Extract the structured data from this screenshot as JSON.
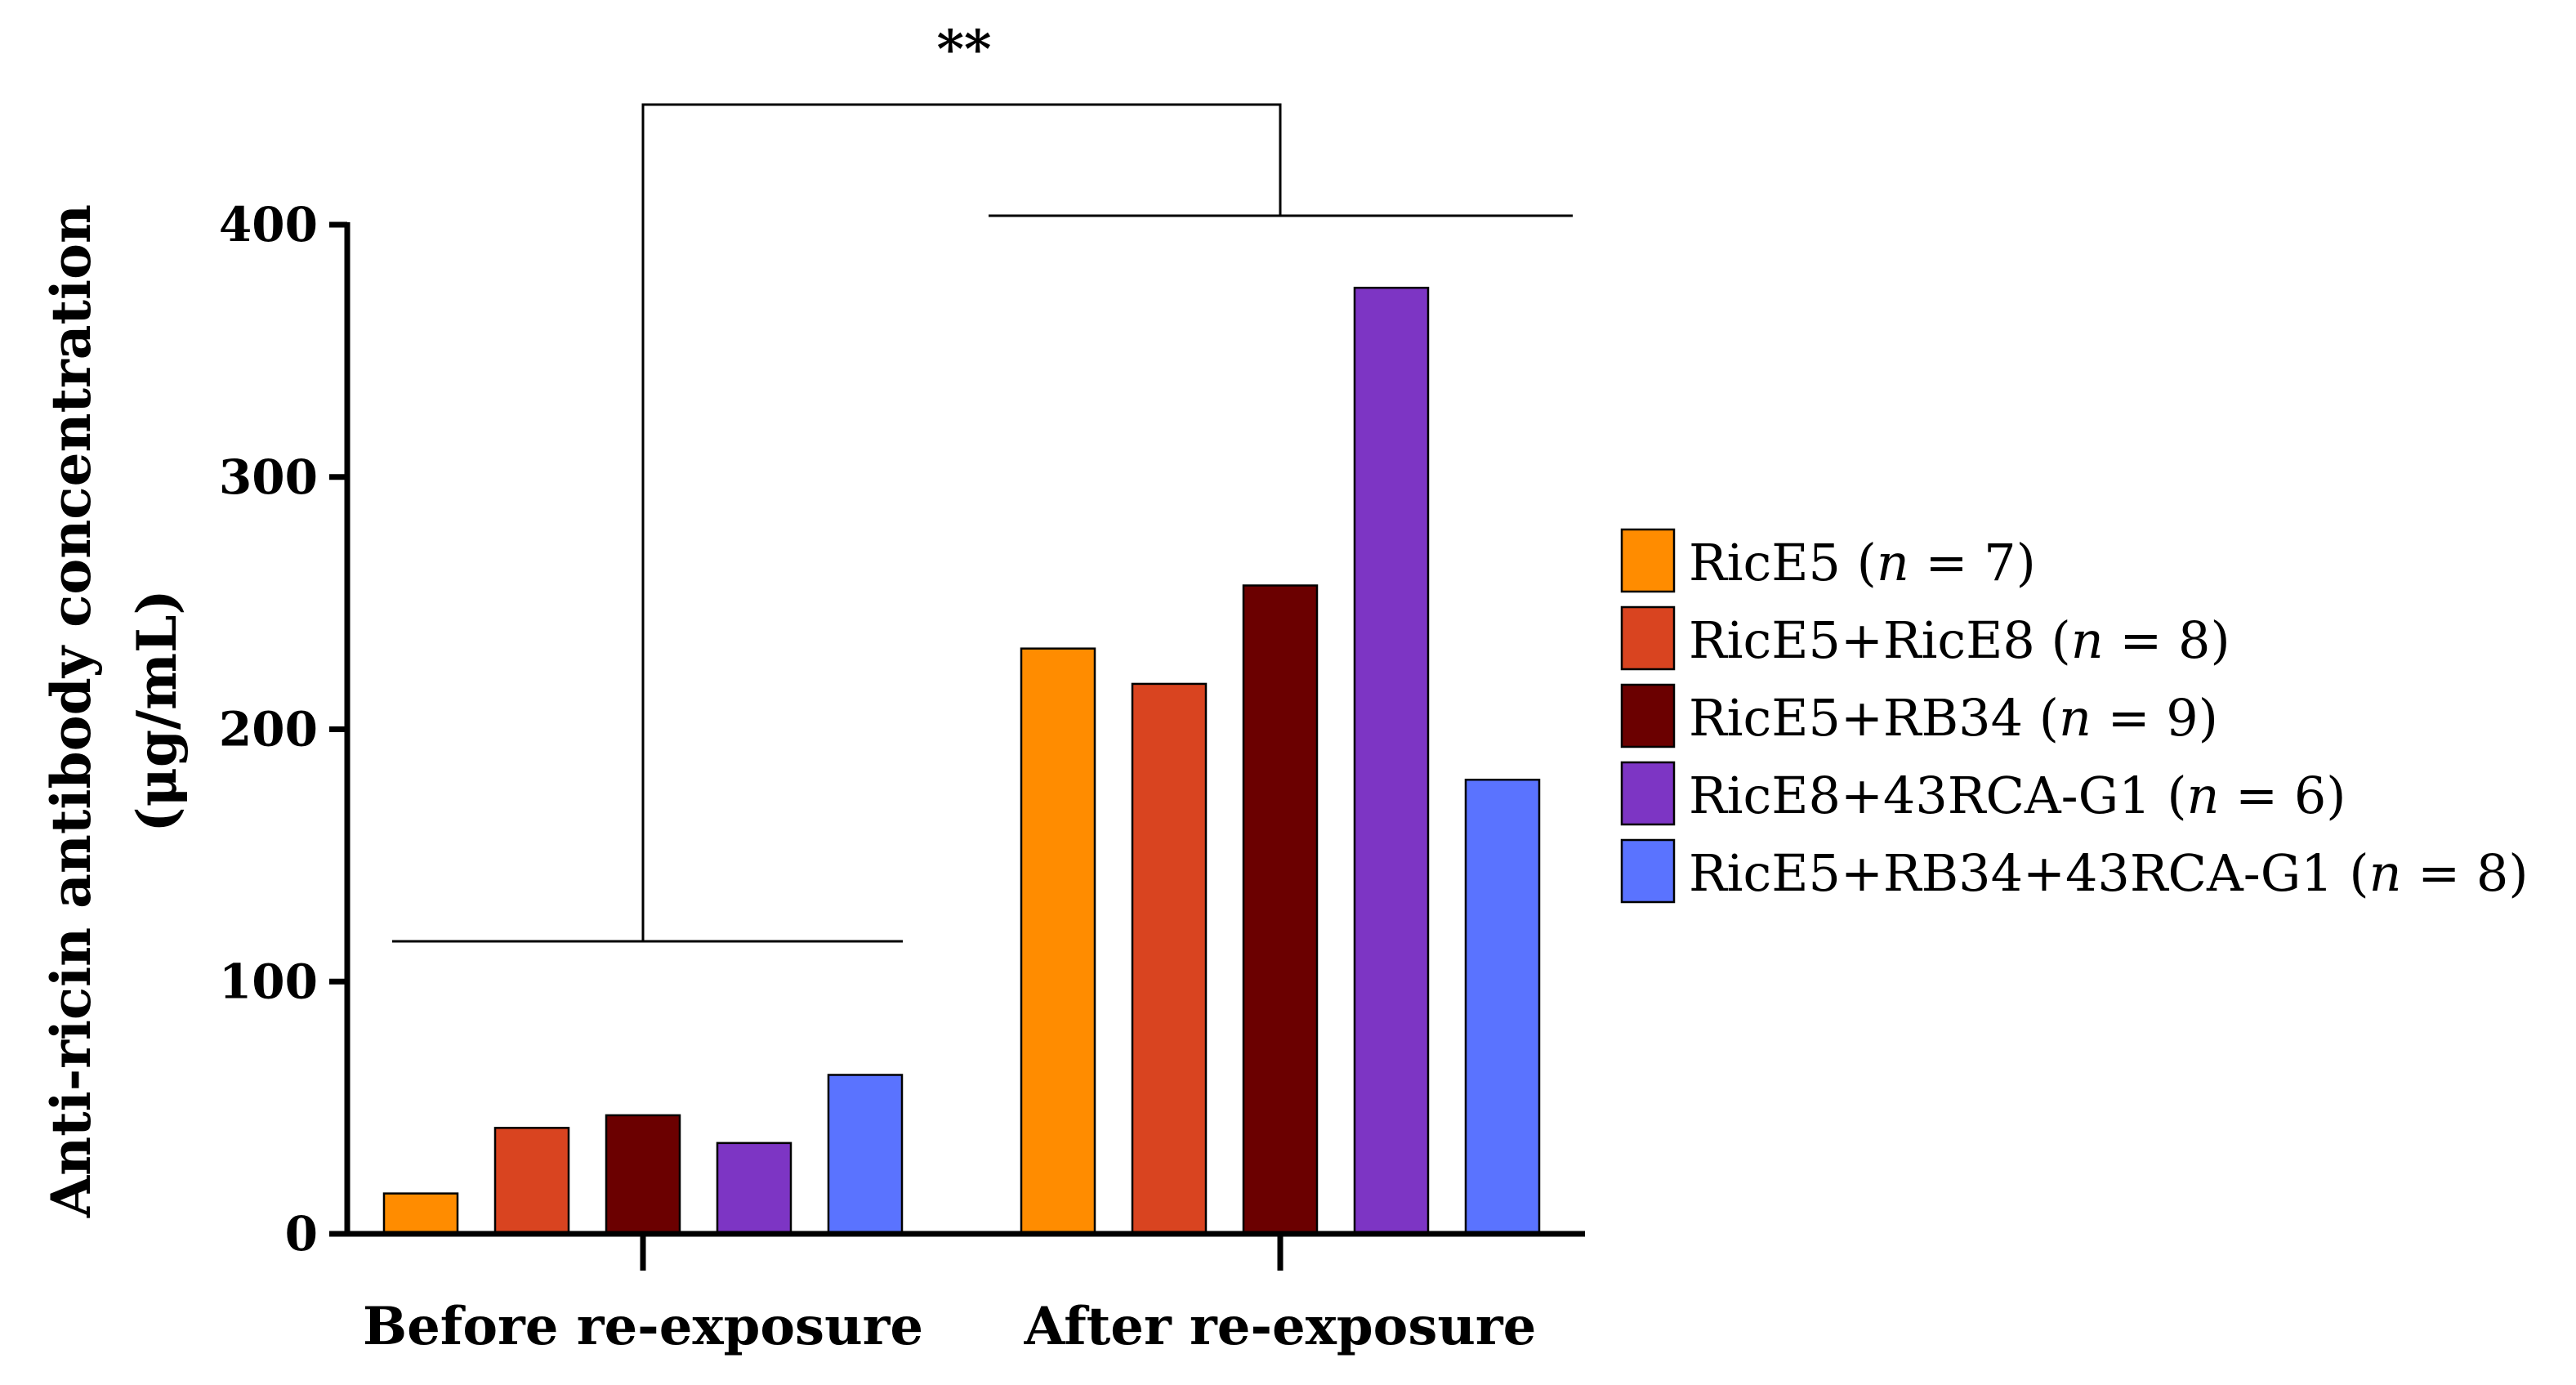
{
  "chart_data": {
    "type": "bar",
    "categories": [
      "Before re-exposure",
      "After re-exposure"
    ],
    "ylabel_line1": "Anti-ricin antibody concentration",
    "ylabel_line2": "(μg/mL)",
    "ylim": [
      0,
      400
    ],
    "yticks": [
      0,
      100,
      200,
      300,
      400
    ],
    "grid": false,
    "legend_position": "right",
    "significance": "**",
    "series": [
      {
        "name": "RicE5",
        "n": "7",
        "color": "#FF8C00",
        "values": [
          16,
          232
        ]
      },
      {
        "name": "RicE5+RicE8",
        "n": "8",
        "color": "#D94420",
        "values": [
          42,
          218
        ]
      },
      {
        "name": "RicE5+RB34",
        "n": "9",
        "color": "#6B0000",
        "values": [
          47,
          257
        ]
      },
      {
        "name": "RicE8+43RCA-G1",
        "n": "6",
        "color": "#7D35C4",
        "values": [
          36,
          375
        ]
      },
      {
        "name": "RicE5+RB34+43RCA-G1",
        "n": "8",
        "color": "#5A73FF",
        "values": [
          63,
          180
        ]
      }
    ]
  }
}
